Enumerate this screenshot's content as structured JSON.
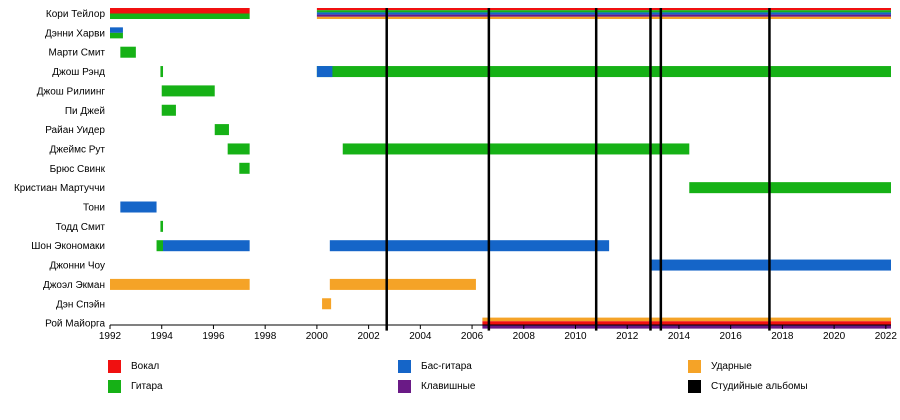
{
  "chart_data": {
    "type": "timeline",
    "xlim": [
      1992,
      2022.2
    ],
    "x_ticks": [
      1992,
      1994,
      1996,
      1998,
      2000,
      2002,
      2004,
      2006,
      2008,
      2010,
      2012,
      2014,
      2016,
      2018,
      2020,
      2022
    ],
    "legend_placement": "bottom",
    "colors": {
      "vocal": "#f01010",
      "guitar": "#16b116",
      "bass": "#1565c8",
      "keys": "#6a1a86",
      "drums": "#f5a327",
      "album": "#000000"
    },
    "members": [
      {
        "name": "Кори Тейлор",
        "stints": [
          {
            "start": 1992.0,
            "end": 1997.4,
            "roles": [
              "vocal",
              "guitar"
            ]
          },
          {
            "start": 2000.0,
            "end": 2022.2,
            "roles": [
              "vocal",
              "guitar",
              "bass",
              "keys",
              "drums"
            ]
          }
        ]
      },
      {
        "name": "Дэнни Харви",
        "stints": [
          {
            "start": 1992.0,
            "end": 1992.5,
            "roles": [
              "bass",
              "guitar"
            ]
          }
        ]
      },
      {
        "name": "Марти Смит",
        "stints": [
          {
            "start": 1992.4,
            "end": 1993.0,
            "roles": [
              "guitar"
            ]
          }
        ]
      },
      {
        "name": "Джош Рэнд",
        "stints": [
          {
            "start": 1993.95,
            "end": 1994.05,
            "roles": [
              "guitar"
            ]
          },
          {
            "start": 2000.0,
            "end": 2022.2,
            "roles": [
              "guitar"
            ]
          },
          {
            "start": 2000.0,
            "end": 2000.6,
            "roles": [
              "bass"
            ]
          }
        ]
      },
      {
        "name": "Джош Рилиинг",
        "stints": [
          {
            "start": 1994.0,
            "end": 1996.05,
            "roles": [
              "guitar"
            ]
          }
        ]
      },
      {
        "name": "Пи Джей",
        "stints": [
          {
            "start": 1994.0,
            "end": 1994.55,
            "roles": [
              "guitar"
            ]
          }
        ]
      },
      {
        "name": "Райан Уидер",
        "stints": [
          {
            "start": 1996.05,
            "end": 1996.6,
            "roles": [
              "guitar"
            ]
          }
        ]
      },
      {
        "name": "Джеймс Рут",
        "stints": [
          {
            "start": 1996.55,
            "end": 1997.4,
            "roles": [
              "guitar"
            ]
          },
          {
            "start": 2001.0,
            "end": 2014.4,
            "roles": [
              "guitar"
            ]
          }
        ]
      },
      {
        "name": "Брюс Свинк",
        "stints": [
          {
            "start": 1997.0,
            "end": 1997.4,
            "roles": [
              "guitar"
            ]
          }
        ]
      },
      {
        "name": "Кристиан Мартуччи",
        "stints": [
          {
            "start": 2014.4,
            "end": 2022.2,
            "roles": [
              "guitar"
            ]
          }
        ]
      },
      {
        "name": "Тони",
        "stints": [
          {
            "start": 1992.4,
            "end": 1993.8,
            "roles": [
              "bass"
            ]
          }
        ]
      },
      {
        "name": "Тодд Смит",
        "stints": [
          {
            "start": 1993.95,
            "end": 1994.05,
            "roles": [
              "guitar"
            ]
          }
        ]
      },
      {
        "name": "Шон Экономаки",
        "stints": [
          {
            "start": 1993.8,
            "end": 1994.05,
            "roles": [
              "guitar"
            ]
          },
          {
            "start": 1994.05,
            "end": 1997.4,
            "roles": [
              "bass"
            ]
          },
          {
            "start": 2000.5,
            "end": 2011.3,
            "roles": [
              "bass"
            ]
          }
        ]
      },
      {
        "name": "Джонни Чоу",
        "stints": [
          {
            "start": 2012.9,
            "end": 2022.2,
            "roles": [
              "bass"
            ]
          }
        ]
      },
      {
        "name": "Джоэл Экман",
        "stints": [
          {
            "start": 1992.0,
            "end": 1997.4,
            "roles": [
              "drums"
            ]
          },
          {
            "start": 2000.5,
            "end": 2006.15,
            "roles": [
              "drums"
            ]
          }
        ]
      },
      {
        "name": "Дэн Спэйн",
        "stints": [
          {
            "start": 2000.2,
            "end": 2000.55,
            "roles": [
              "drums"
            ]
          }
        ]
      },
      {
        "name": "Рой Майорга",
        "stints": [
          {
            "start": 2006.4,
            "end": 2022.2,
            "roles": [
              "drums",
              "vocal",
              "keys"
            ]
          }
        ]
      }
    ],
    "albums": [
      2002.7,
      2006.65,
      2010.8,
      2012.9,
      2013.3,
      2017.5
    ],
    "legend": [
      {
        "label": "Вокал",
        "color": "#f01010"
      },
      {
        "label": "Гитара",
        "color": "#16b116"
      },
      {
        "label": "Бас-гитара",
        "color": "#1565c8"
      },
      {
        "label": "Клавишные",
        "color": "#6a1a86"
      },
      {
        "label": "Ударные",
        "color": "#f5a327"
      },
      {
        "label": "Студийные альбомы",
        "color": "#000000"
      }
    ]
  }
}
